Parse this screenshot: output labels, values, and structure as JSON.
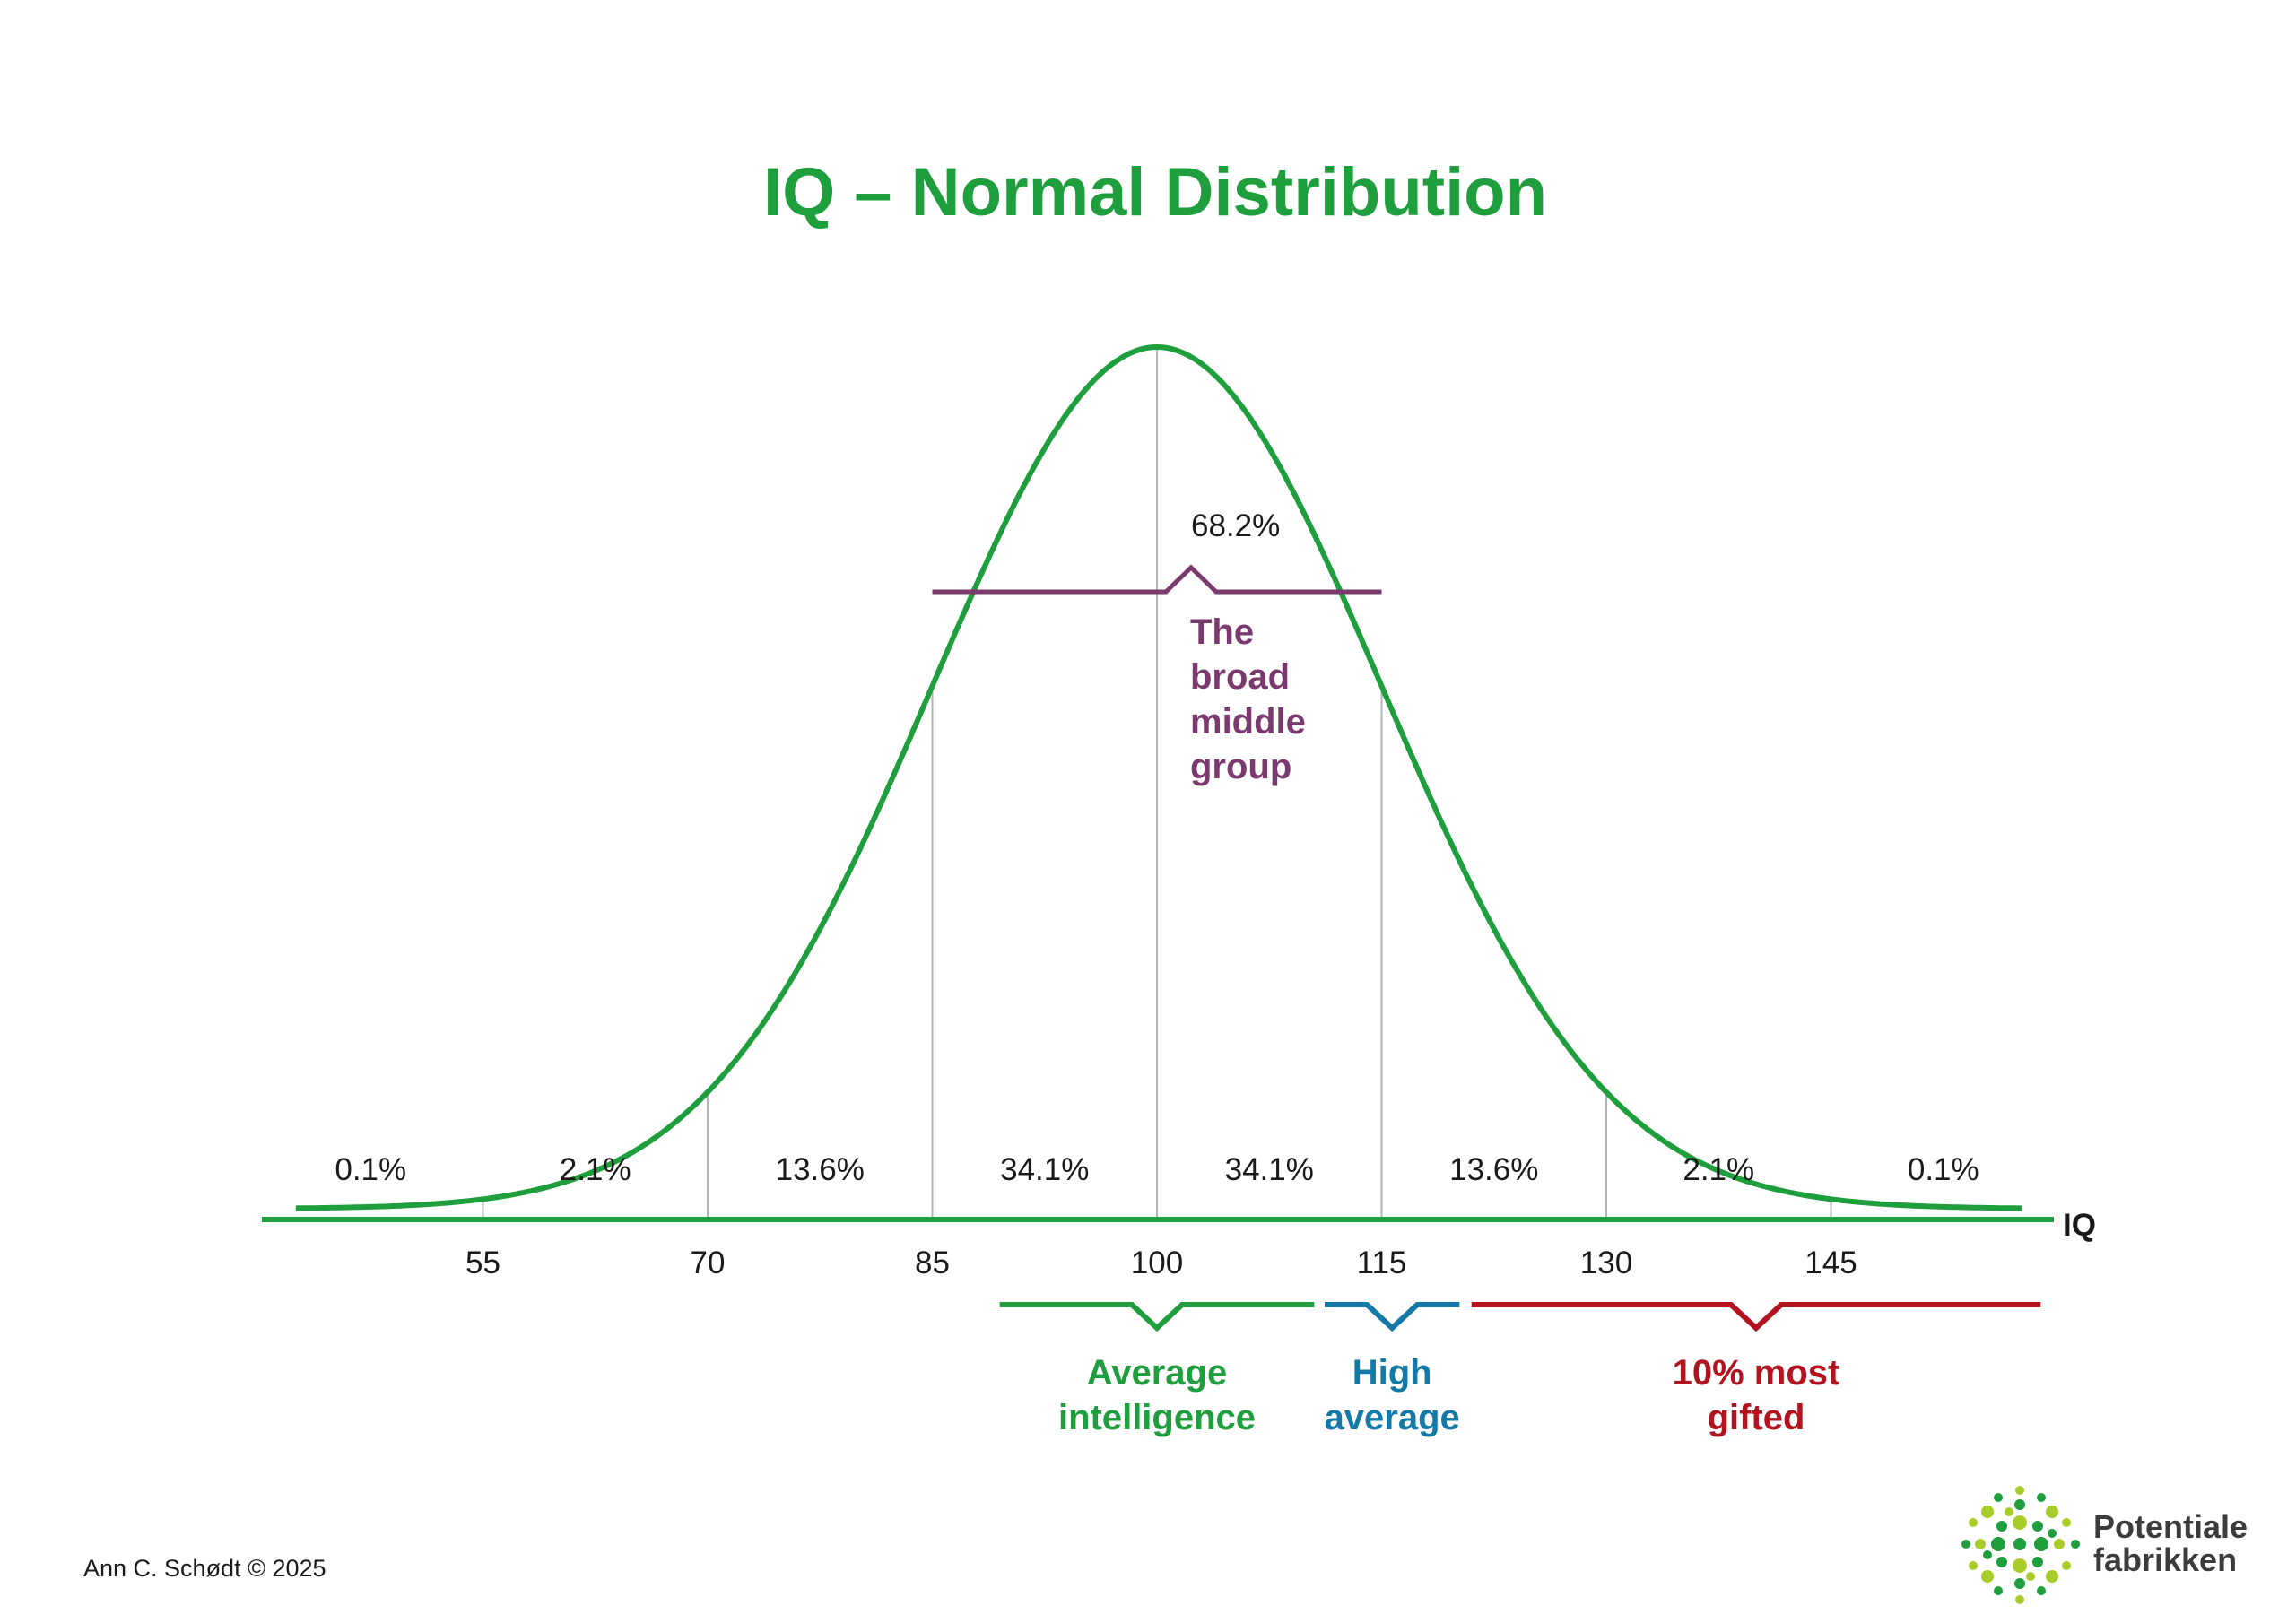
{
  "chart_data": {
    "type": "line",
    "title": "IQ – Normal Distribution",
    "xlabel": "IQ",
    "xlim": [
      40,
      160
    ],
    "mean": 100,
    "sd": 15,
    "ticks": [
      55,
      70,
      85,
      100,
      115,
      130,
      145
    ],
    "segments": [
      {
        "from": 40,
        "to": 55,
        "label": "0.1%"
      },
      {
        "from": 55,
        "to": 70,
        "label": "2.1%"
      },
      {
        "from": 70,
        "to": 85,
        "label": "13.6%"
      },
      {
        "from": 85,
        "to": 100,
        "label": "34.1%"
      },
      {
        "from": 100,
        "to": 115,
        "label": "34.1%"
      },
      {
        "from": 115,
        "to": 130,
        "label": "13.6%"
      },
      {
        "from": 130,
        "to": 145,
        "label": "2.1%"
      },
      {
        "from": 145,
        "to": 160,
        "label": "0.1%"
      }
    ],
    "middle_group": {
      "from": 85,
      "to": 115,
      "percent": "68.2%",
      "lines": [
        "The",
        "broad",
        "middle",
        "group"
      ],
      "color": "#7b3a6e"
    },
    "bands": [
      {
        "from": 89.5,
        "to": 110.5,
        "lines": [
          "Average",
          "intelligence"
        ],
        "color": "#1e9e3c"
      },
      {
        "from": 111.2,
        "to": 120.2,
        "lines": [
          "High",
          "average"
        ],
        "color": "#137aa7"
      },
      {
        "from": 121,
        "to": 159,
        "lines": [
          "10% most",
          "gifted"
        ],
        "color": "#b3131f"
      }
    ],
    "grid": false,
    "legend": "none"
  },
  "colors": {
    "curve": "#1e9e3c",
    "title": "#1e9e3c",
    "gridline": "#b4b4b4"
  },
  "credit": "Ann C. Schødt © 2025",
  "logo": {
    "lines": [
      "Potentiale",
      "fabrikken"
    ],
    "colors": [
      "#1e9e3c",
      "#a8cc2a"
    ]
  }
}
